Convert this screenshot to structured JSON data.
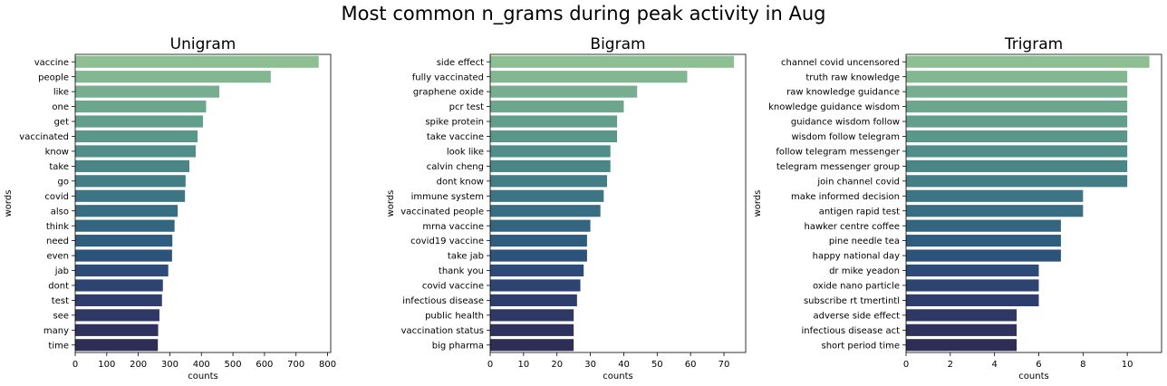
{
  "suptitle": "Most common n_grams during peak activity in Aug",
  "chart_data": [
    {
      "type": "bar",
      "orientation": "horizontal",
      "title": "Unigram",
      "xlabel": "counts",
      "ylabel": "words",
      "xlim": [
        0,
        810
      ],
      "xticks": [
        0,
        100,
        200,
        300,
        400,
        500,
        600,
        700,
        800
      ],
      "categories": [
        "vaccine",
        "people",
        "like",
        "one",
        "get",
        "vaccinated",
        "know",
        "take",
        "go",
        "covid",
        "also",
        "think",
        "need",
        "even",
        "jab",
        "dont",
        "test",
        "see",
        "many",
        "time"
      ],
      "values": [
        772,
        620,
        457,
        415,
        405,
        388,
        382,
        362,
        350,
        348,
        325,
        315,
        308,
        307,
        295,
        278,
        275,
        267,
        263,
        262
      ],
      "grid": false,
      "palette": "crest (green to dark blue)"
    },
    {
      "type": "bar",
      "orientation": "horizontal",
      "title": "Bigram",
      "xlabel": "counts",
      "ylabel": "words",
      "xlim": [
        0,
        76.5
      ],
      "xticks": [
        0,
        10,
        20,
        30,
        40,
        50,
        60,
        70
      ],
      "categories": [
        "side effect",
        "fully vaccinated",
        "graphene oxide",
        "pcr test",
        "spike protein",
        "take vaccine",
        "look like",
        "calvin cheng",
        "dont know",
        "immune system",
        "vaccinated people",
        "mrna vaccine",
        "covid19 vaccine",
        "take jab",
        "thank you",
        "covid vaccine",
        "infectious disease",
        "public health",
        "vaccination status",
        "big pharma"
      ],
      "values": [
        73,
        59,
        44,
        40,
        38,
        38,
        36,
        36,
        35,
        34,
        33,
        30,
        29,
        29,
        28,
        27,
        26,
        25,
        25,
        25
      ],
      "grid": false,
      "palette": "crest (green to dark blue)"
    },
    {
      "type": "bar",
      "orientation": "horizontal",
      "title": "Trigram",
      "xlabel": "counts",
      "ylabel": "words",
      "xlim": [
        0,
        11.55
      ],
      "xticks": [
        0,
        2,
        4,
        6,
        8,
        10
      ],
      "categories": [
        "channel covid uncensored",
        "truth raw knowledge",
        "raw knowledge guidance",
        "knowledge guidance wisdom",
        "guidance wisdom follow",
        "wisdom follow telegram",
        "follow telegram messenger",
        "telegram messenger group",
        "join channel covid",
        "make informed decision",
        "antigen rapid test",
        "hawker centre coffee",
        "pine needle tea",
        "happy national day",
        "dr mike yeadon",
        "oxide nano particle",
        "subscribe rt tmertintl",
        "adverse side effect",
        "infectious disease act",
        "short period time"
      ],
      "values": [
        11,
        10,
        10,
        10,
        10,
        10,
        10,
        10,
        10,
        8,
        8,
        7,
        7,
        7,
        6,
        6,
        6,
        5,
        5,
        5
      ],
      "grid": false,
      "palette": "crest (green to dark blue)"
    }
  ]
}
